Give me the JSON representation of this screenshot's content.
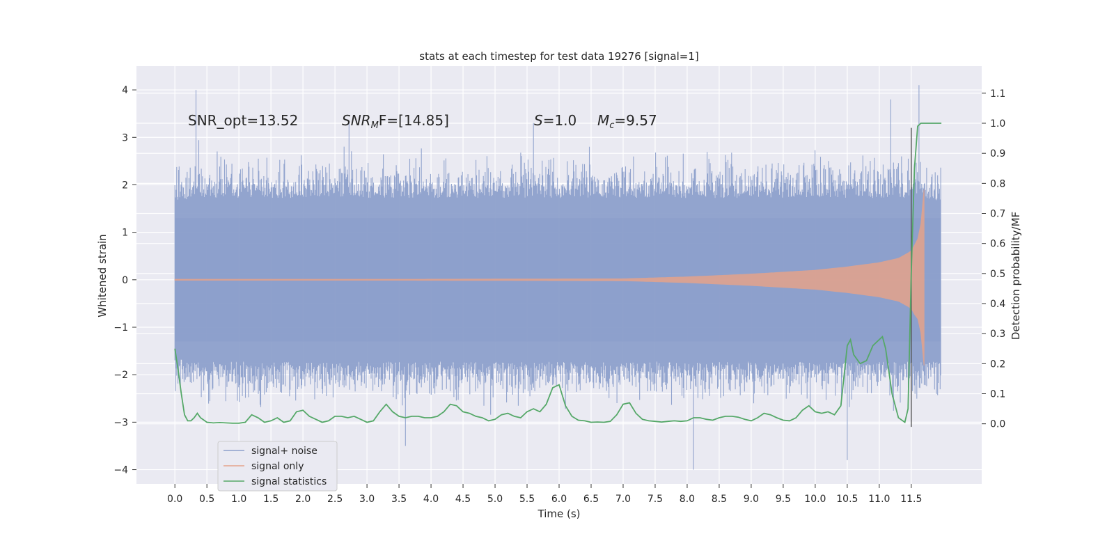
{
  "chart_data": {
    "type": "line",
    "title": "stats at each timestep for test data 19276 [signal=1]",
    "xlabel": "Time (s)",
    "ylabel_left": "Whitened strain",
    "ylabel_right": "Detection probability/MF",
    "xlim": [
      -0.6,
      12.6
    ],
    "ylim_left": [
      -4.3,
      4.5
    ],
    "ylim_right": [
      -0.2,
      1.19
    ],
    "x_ticks": [
      "0.0",
      "0.5",
      "1.0",
      "1.5",
      "2.0",
      "2.5",
      "3.0",
      "3.5",
      "4.0",
      "4.5",
      "5.0",
      "5.5",
      "6.0",
      "6.5",
      "7.0",
      "7.5",
      "8.0",
      "8.5",
      "9.0",
      "9.5",
      "10.0",
      "10.5",
      "11.0",
      "11.5"
    ],
    "y_ticks_left": [
      "4",
      "3",
      "2",
      "1",
      "0",
      "−1",
      "−2",
      "−3",
      "−4"
    ],
    "y_ticks_right": [
      "1.1",
      "1.0",
      "0.9",
      "0.8",
      "0.7",
      "0.6",
      "0.5",
      "0.4",
      "0.3",
      "0.2",
      "0.1",
      "0.0"
    ],
    "grid": true,
    "legend_position": "lower-left",
    "annotations": {
      "snr_opt": "SNR_opt=13.52",
      "snr_mf_sym": "SNR",
      "snr_mf_sub": "M",
      "snr_mf_tail": "F=[14.85]",
      "s_sym": "S",
      "s_tail": "=1.0",
      "mc_sym": "M",
      "mc_sub": "c",
      "mc_tail": "=9.57"
    },
    "series": [
      {
        "name": "signal+ noise",
        "color": "#8da0cb",
        "axis": "left",
        "description_envelope": {
          "x": [
            0.0,
            0.3,
            2.7,
            5.7,
            7.5,
            11.7,
            11.96
          ],
          "upper_typical": [
            2.2,
            2.3,
            2.3,
            2.3,
            2.3,
            2.3,
            2.2
          ],
          "lower_typical": [
            -2.2,
            -2.3,
            -2.3,
            -2.3,
            -2.3,
            -2.3,
            -2.3
          ],
          "peaks": [
            {
              "x": 0.33,
              "y": 4.0
            },
            {
              "x": 2.72,
              "y": 3.3
            },
            {
              "x": 5.6,
              "y": 3.3
            },
            {
              "x": 11.18,
              "y": 3.8
            },
            {
              "x": 11.62,
              "y": 4.1
            },
            {
              "x": 8.1,
              "y": -4.0
            },
            {
              "x": 10.5,
              "y": -3.8
            },
            {
              "x": 3.6,
              "y": -3.5
            }
          ]
        }
      },
      {
        "name": "signal only",
        "color": "#e5a38b",
        "axis": "left",
        "envelope_x": [
          0.0,
          7.0,
          8.0,
          9.0,
          10.0,
          10.5,
          11.0,
          11.3,
          11.5,
          11.6,
          11.67,
          11.7
        ],
        "envelope_amp": [
          0.0,
          0.02,
          0.06,
          0.12,
          0.2,
          0.27,
          0.36,
          0.45,
          0.6,
          0.85,
          1.3,
          1.9
        ]
      },
      {
        "name": "signal statistics",
        "color": "#55a868",
        "axis": "right",
        "x": [
          0.0,
          0.05,
          0.1,
          0.15,
          0.2,
          0.25,
          0.3,
          0.35,
          0.4,
          0.5,
          0.6,
          0.7,
          0.8,
          0.9,
          1.0,
          1.1,
          1.2,
          1.3,
          1.4,
          1.5,
          1.6,
          1.7,
          1.8,
          1.9,
          2.0,
          2.1,
          2.2,
          2.3,
          2.4,
          2.5,
          2.6,
          2.7,
          2.8,
          2.9,
          3.0,
          3.1,
          3.2,
          3.3,
          3.4,
          3.5,
          3.6,
          3.7,
          3.8,
          3.9,
          4.0,
          4.1,
          4.2,
          4.3,
          4.4,
          4.5,
          4.6,
          4.7,
          4.8,
          4.9,
          5.0,
          5.1,
          5.2,
          5.3,
          5.4,
          5.5,
          5.6,
          5.7,
          5.8,
          5.9,
          6.0,
          6.1,
          6.2,
          6.3,
          6.4,
          6.5,
          6.6,
          6.7,
          6.8,
          6.9,
          7.0,
          7.1,
          7.2,
          7.3,
          7.4,
          7.5,
          7.6,
          7.7,
          7.8,
          7.9,
          8.0,
          8.1,
          8.2,
          8.3,
          8.4,
          8.5,
          8.6,
          8.7,
          8.8,
          8.9,
          9.0,
          9.1,
          9.2,
          9.3,
          9.4,
          9.5,
          9.6,
          9.7,
          9.8,
          9.9,
          10.0,
          10.1,
          10.2,
          10.3,
          10.4,
          10.5,
          10.55,
          10.6,
          10.7,
          10.8,
          10.9,
          11.0,
          11.05,
          11.1,
          11.2,
          11.3,
          11.4,
          11.45,
          11.5,
          11.55,
          11.6,
          11.65,
          11.7,
          11.8,
          11.9,
          11.97
        ],
        "values": [
          0.25,
          0.18,
          0.1,
          0.03,
          0.01,
          0.01,
          0.02,
          0.035,
          0.02,
          0.005,
          0.003,
          0.004,
          0.003,
          0.002,
          0.002,
          0.005,
          0.03,
          0.02,
          0.005,
          0.01,
          0.02,
          0.005,
          0.01,
          0.04,
          0.045,
          0.025,
          0.015,
          0.005,
          0.01,
          0.025,
          0.025,
          0.02,
          0.025,
          0.015,
          0.005,
          0.01,
          0.04,
          0.065,
          0.04,
          0.025,
          0.02,
          0.025,
          0.025,
          0.02,
          0.02,
          0.025,
          0.04,
          0.065,
          0.06,
          0.04,
          0.035,
          0.025,
          0.02,
          0.01,
          0.015,
          0.03,
          0.035,
          0.025,
          0.02,
          0.04,
          0.05,
          0.04,
          0.065,
          0.12,
          0.13,
          0.06,
          0.025,
          0.012,
          0.01,
          0.005,
          0.006,
          0.005,
          0.008,
          0.03,
          0.065,
          0.07,
          0.035,
          0.015,
          0.01,
          0.008,
          0.006,
          0.008,
          0.01,
          0.008,
          0.01,
          0.02,
          0.02,
          0.015,
          0.012,
          0.02,
          0.025,
          0.025,
          0.022,
          0.015,
          0.01,
          0.02,
          0.035,
          0.03,
          0.02,
          0.012,
          0.01,
          0.02,
          0.045,
          0.06,
          0.04,
          0.035,
          0.04,
          0.03,
          0.06,
          0.26,
          0.28,
          0.23,
          0.2,
          0.21,
          0.26,
          0.28,
          0.29,
          0.25,
          0.1,
          0.02,
          0.005,
          0.05,
          0.5,
          0.85,
          0.99,
          1.0,
          1.0,
          1.0,
          1.0,
          1.0
        ]
      }
    ],
    "vertical_line": {
      "x": 11.5,
      "y_left": [
        -3.1,
        3.2
      ],
      "color": "#555555"
    }
  }
}
